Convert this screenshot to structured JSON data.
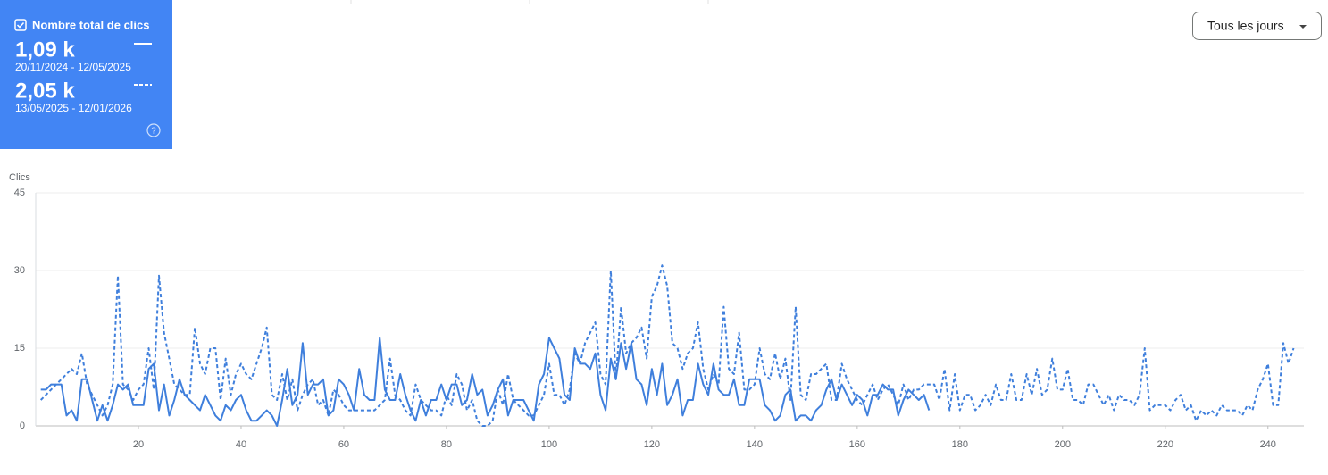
{
  "chart_data": {
    "type": "line",
    "metric_label": "Nombre total de clics",
    "dropdown": "Tous les jours",
    "ylabel": "Clics",
    "xlim": [
      0,
      247
    ],
    "xticks": [
      20,
      40,
      60,
      80,
      100,
      120,
      140,
      160,
      180,
      200,
      220,
      240
    ],
    "ylim": [
      0,
      45
    ],
    "yticks": [
      0,
      15,
      30,
      45
    ],
    "grid": true,
    "x": [
      1,
      2,
      3,
      4,
      5,
      6,
      7,
      8,
      9,
      10,
      11,
      12,
      13,
      14,
      15,
      16,
      17,
      18,
      19,
      20,
      21,
      22,
      23,
      24,
      25,
      26,
      27,
      28,
      29,
      30,
      31,
      32,
      33,
      34,
      35,
      36,
      37,
      38,
      39,
      40,
      41,
      42,
      43,
      44,
      45,
      46,
      47,
      48,
      49,
      50,
      51,
      52,
      53,
      54,
      55,
      56,
      57,
      58,
      59,
      60,
      61,
      62,
      63,
      64,
      65,
      66,
      67,
      68,
      69,
      70,
      71,
      72,
      73,
      74,
      75,
      76,
      77,
      78,
      79,
      80,
      81,
      82,
      83,
      84,
      85,
      86,
      87,
      88,
      89,
      90,
      91,
      92,
      93,
      94,
      95,
      96,
      97,
      98,
      99,
      100,
      101,
      102,
      103,
      104,
      105,
      106,
      107,
      108,
      109,
      110,
      111,
      112,
      113,
      114,
      115,
      116,
      117,
      118,
      119,
      120,
      121,
      122,
      123,
      124,
      125,
      126,
      127,
      128,
      129,
      130,
      131,
      132,
      133,
      134,
      135,
      136,
      137,
      138,
      139,
      140,
      141,
      142,
      143,
      144,
      145,
      146,
      147,
      148,
      149,
      150,
      151,
      152,
      153,
      154,
      155,
      156,
      157,
      158,
      159,
      160,
      161,
      162,
      163,
      164,
      165,
      166,
      167,
      168,
      169,
      170,
      171,
      172,
      173,
      174,
      175,
      176,
      177,
      178,
      179,
      180,
      181,
      182,
      183,
      184,
      185,
      186,
      187,
      188,
      189,
      190,
      191,
      192,
      193,
      194,
      195,
      196,
      197,
      198,
      199,
      200,
      201,
      202,
      203,
      204,
      205,
      206,
      207,
      208,
      209,
      210,
      211,
      212,
      213,
      214,
      215,
      216,
      217,
      218,
      219,
      220,
      221,
      222,
      223,
      224,
      225,
      226,
      227,
      228,
      229,
      230,
      231,
      232,
      233,
      234,
      235,
      236,
      237,
      238,
      239,
      240,
      241,
      242,
      243,
      244,
      245
    ],
    "series": [
      {
        "name": "20/11/2024 - 12/05/2025",
        "total": "1,09 k",
        "color": "#3f7fdc",
        "dashed": false,
        "values": [
          7,
          7,
          8,
          8,
          8,
          2,
          3,
          1,
          9,
          9,
          5,
          1,
          4,
          1,
          4,
          8,
          7,
          8,
          4,
          4,
          4,
          11,
          12,
          3,
          8,
          2,
          5,
          9,
          6,
          5,
          4,
          3,
          6,
          4,
          2,
          1,
          4,
          3,
          5,
          6,
          3,
          1,
          1,
          2,
          3,
          2,
          0,
          5,
          11,
          4,
          6,
          16,
          6,
          8,
          8,
          9,
          2,
          3,
          9,
          8,
          6,
          3,
          11,
          6,
          5,
          5,
          17,
          7,
          5,
          5,
          10,
          6,
          3,
          1,
          5,
          2,
          5,
          5,
          8,
          5,
          8,
          8,
          4,
          5,
          10,
          6,
          7,
          2,
          4,
          7,
          9,
          2,
          5,
          5,
          5,
          3,
          1,
          8,
          10,
          17,
          15,
          13,
          6,
          5,
          15,
          12,
          12,
          11,
          14,
          6,
          3,
          13,
          9,
          16,
          11,
          16,
          9,
          8,
          4,
          11,
          6,
          12,
          4,
          6,
          9,
          2,
          5,
          5,
          12,
          8,
          6,
          12,
          7,
          6,
          6,
          9,
          4,
          4,
          9,
          9,
          9,
          4,
          3,
          1,
          2,
          6,
          7,
          1,
          2,
          2,
          1,
          3,
          4,
          7,
          9,
          5,
          8,
          6,
          4,
          6,
          5,
          2,
          6,
          6,
          8,
          7,
          7,
          2,
          5,
          7,
          6,
          5,
          6,
          3,
          null,
          null,
          null,
          null,
          null,
          null,
          null,
          null,
          null,
          null,
          null,
          null,
          null,
          null,
          null,
          null,
          null,
          null,
          null,
          null,
          null,
          null,
          null,
          null,
          null,
          null,
          null,
          null,
          null,
          null,
          null,
          null,
          null,
          null,
          null,
          null,
          null,
          null,
          null,
          null,
          null,
          null,
          null,
          null,
          null,
          null,
          null,
          null,
          null,
          null,
          null,
          null,
          null,
          null,
          null,
          null,
          null,
          null,
          null,
          null,
          null,
          null,
          null,
          null,
          null,
          null,
          null,
          null,
          null,
          null,
          null
        ]
      },
      {
        "name": "13/05/2025 - 12/01/2026",
        "total": "2,05 k",
        "color": "#3f7fdc",
        "dashed": true,
        "values": [
          5,
          6,
          7,
          8,
          9,
          10,
          11,
          10,
          14,
          8,
          6,
          4,
          2,
          4,
          8,
          29,
          8,
          7,
          5,
          7,
          8,
          15,
          7,
          29,
          18,
          13,
          8,
          7,
          6,
          6,
          19,
          12,
          10,
          15,
          15,
          5,
          13,
          6,
          10,
          12,
          10,
          9,
          12,
          15,
          19,
          6,
          5,
          10,
          5,
          9,
          3,
          6,
          8,
          9,
          4,
          5,
          2,
          7,
          6,
          4,
          3,
          3,
          3,
          3,
          3,
          3,
          4,
          5,
          13,
          6,
          5,
          3,
          2,
          8,
          5,
          4,
          3,
          3,
          2,
          6,
          4,
          10,
          8,
          3,
          5,
          1,
          0,
          0,
          1,
          7,
          4,
          10,
          5,
          4,
          3,
          2,
          2,
          4,
          6,
          12,
          6,
          6,
          4,
          7,
          14,
          12,
          16,
          18,
          20,
          10,
          8,
          30,
          9,
          23,
          14,
          16,
          17,
          19,
          13,
          25,
          27,
          31,
          27,
          16,
          15,
          11,
          14,
          15,
          20,
          11,
          7,
          10,
          8,
          23,
          11,
          10,
          18,
          7,
          7,
          8,
          15,
          10,
          9,
          14,
          9,
          13,
          5,
          23,
          6,
          5,
          10,
          10,
          11,
          12,
          5,
          5,
          12,
          9,
          7,
          5,
          4,
          6,
          8,
          5,
          7,
          8,
          6,
          4,
          8,
          5,
          7,
          7,
          8,
          8,
          8,
          5,
          11,
          3,
          10,
          3,
          6,
          6,
          3,
          4,
          6,
          4,
          8,
          5,
          5,
          10,
          5,
          5,
          10,
          6,
          11,
          6,
          7,
          13,
          7,
          7,
          11,
          5,
          5,
          4,
          8,
          8,
          6,
          4,
          6,
          3,
          6,
          5,
          5,
          4,
          6,
          15,
          3,
          4,
          4,
          4,
          3,
          5,
          6,
          3,
          4,
          1,
          3,
          2,
          3,
          2,
          4,
          3,
          3,
          3,
          2,
          4,
          3,
          7,
          9,
          12,
          4,
          4,
          16,
          12,
          15
        ]
      }
    ]
  }
}
